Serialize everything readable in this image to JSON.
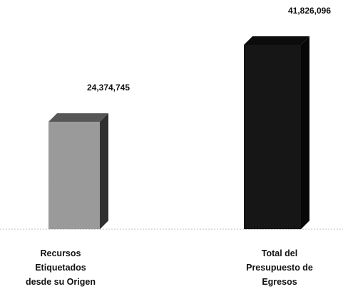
{
  "chart_data": {
    "type": "bar3d",
    "categories": [
      "Recursos Etiquetados desde su Origen",
      "Total del Presupuesto de Egresos"
    ],
    "values": [
      24374745,
      41826096
    ],
    "value_labels": [
      "24,374,745",
      "41,826,096"
    ],
    "colors": [
      "#9c9c9c",
      "#161616"
    ]
  }
}
